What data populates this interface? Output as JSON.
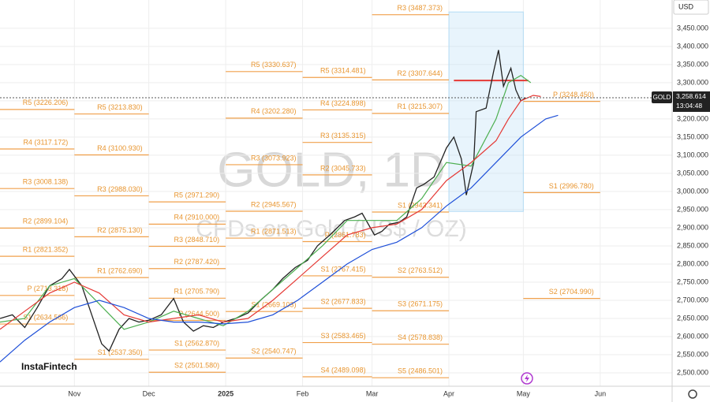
{
  "chart_data": {
    "type": "line",
    "title": "GOLD, 1D",
    "subtitle": "CFDs on Gold (US$ / OZ)",
    "symbol": "GOLD",
    "currency": "USD",
    "brand": "InstaFintech",
    "countdown": "13:04:48",
    "last_price": {
      "value": 3258.614,
      "label": "3,258.614"
    },
    "xlim": [
      -30,
      241
    ],
    "xticks": [
      {
        "value": 0,
        "label": "Nov"
      },
      {
        "value": 30,
        "label": "Dec"
      },
      {
        "value": 61,
        "label": "2025"
      },
      {
        "value": 92,
        "label": "Feb"
      },
      {
        "value": 120,
        "label": "Mar"
      },
      {
        "value": 151,
        "label": "Apr"
      },
      {
        "value": 181,
        "label": "May"
      },
      {
        "value": 212,
        "label": "Jun"
      }
    ],
    "ylim": [
      2463,
      3528
    ],
    "yticks": [
      {
        "value": 2500,
        "label": "2,500.000"
      },
      {
        "value": 2550,
        "label": "2,550.000"
      },
      {
        "value": 2600,
        "label": "2,600.000"
      },
      {
        "value": 2650,
        "label": "2,650.000"
      },
      {
        "value": 2700,
        "label": "2,700.000"
      },
      {
        "value": 2750,
        "label": "2,750.000"
      },
      {
        "value": 2800,
        "label": "2,800.000"
      },
      {
        "value": 2850,
        "label": "2,850.000"
      },
      {
        "value": 2900,
        "label": "2,900.000"
      },
      {
        "value": 2950,
        "label": "2,950.000"
      },
      {
        "value": 3000,
        "label": "3,000.000"
      },
      {
        "value": 3050,
        "label": "3,050.000"
      },
      {
        "value": 3100,
        "label": "3,100.000"
      },
      {
        "value": 3150,
        "label": "3,150.000"
      },
      {
        "value": 3200,
        "label": "3,200.000"
      },
      {
        "value": 3250,
        "label": "3,250.000"
      },
      {
        "value": 3300,
        "label": "3,300.000"
      },
      {
        "value": 3350,
        "label": "3,350.000"
      },
      {
        "value": 3400,
        "label": "3,400.000"
      },
      {
        "value": 3450,
        "label": "3,450.000"
      }
    ],
    "grid": true,
    "series": [
      {
        "color": "#222222",
        "x": [
          -30,
          -25,
          -20,
          -15,
          -10,
          -5,
          -2,
          3,
          7,
          11,
          14,
          18,
          22,
          26,
          30,
          35,
          40,
          44,
          48,
          52,
          56,
          60,
          65,
          70,
          75,
          80,
          84,
          89,
          94,
          98,
          103,
          106,
          109,
          113,
          116,
          121,
          124,
          127,
          131,
          134,
          138,
          141,
          145,
          150,
          153,
          156,
          158,
          161,
          162,
          166,
          169,
          171,
          173,
          176,
          178,
          180,
          182
        ],
        "values": [
          2650,
          2660,
          2625,
          2680,
          2740,
          2760,
          2785,
          2740,
          2660,
          2580,
          2560,
          2620,
          2650,
          2640,
          2645,
          2660,
          2705,
          2640,
          2615,
          2630,
          2625,
          2640,
          2650,
          2665,
          2700,
          2730,
          2760,
          2790,
          2810,
          2850,
          2880,
          2900,
          2920,
          2930,
          2940,
          2880,
          2890,
          2910,
          2915,
          2930,
          3010,
          3020,
          3040,
          3120,
          3150,
          3090,
          2990,
          3080,
          3220,
          3230,
          3330,
          3390,
          3290,
          3340,
          3280,
          3250,
          3258
        ]
      },
      {
        "color": "#4caf50",
        "x": [
          -30,
          -20,
          -10,
          0,
          10,
          20,
          30,
          40,
          50,
          60,
          70,
          80,
          90,
          100,
          110,
          120,
          130,
          140,
          150,
          160,
          170,
          175,
          180,
          184
        ],
        "values": [
          2640,
          2650,
          2740,
          2760,
          2690,
          2620,
          2640,
          2670,
          2650,
          2630,
          2670,
          2730,
          2790,
          2850,
          2920,
          2920,
          2920,
          2980,
          3080,
          3070,
          3200,
          3300,
          3320,
          3300
        ]
      },
      {
        "color": "#e53935",
        "x": [
          -30,
          -20,
          -10,
          0,
          10,
          20,
          30,
          40,
          50,
          60,
          70,
          80,
          90,
          100,
          110,
          120,
          130,
          140,
          150,
          160,
          170,
          175,
          180,
          185,
          188
        ],
        "values": [
          2620,
          2670,
          2720,
          2750,
          2720,
          2660,
          2640,
          2650,
          2660,
          2640,
          2650,
          2700,
          2760,
          2820,
          2880,
          2900,
          2910,
          2950,
          3030,
          3080,
          3140,
          3200,
          3250,
          3265,
          3262
        ]
      },
      {
        "color": "#1e4fd8",
        "x": [
          -30,
          -20,
          -10,
          0,
          10,
          20,
          30,
          40,
          50,
          60,
          70,
          80,
          90,
          100,
          110,
          120,
          130,
          140,
          150,
          160,
          170,
          180,
          190,
          195
        ],
        "values": [
          2530,
          2590,
          2640,
          2680,
          2700,
          2680,
          2650,
          2640,
          2640,
          2635,
          2640,
          2660,
          2700,
          2750,
          2800,
          2840,
          2860,
          2900,
          2960,
          3010,
          3080,
          3150,
          3200,
          3210
        ]
      }
    ],
    "level_color": "#f0a04b",
    "levels": [
      {
        "label": "R5 (3226.206)",
        "value": 3226.206,
        "x": [
          -30,
          0
        ]
      },
      {
        "label": "R4 (3117.172)",
        "value": 3117.172,
        "x": [
          -30,
          0
        ]
      },
      {
        "label": "R3 (3008.138)",
        "value": 3008.138,
        "x": [
          -30,
          0
        ]
      },
      {
        "label": "R2 (2899.104)",
        "value": 2899.104,
        "x": [
          -30,
          0
        ]
      },
      {
        "label": "R1 (2821.352)",
        "value": 2821.352,
        "x": [
          -30,
          0
        ]
      },
      {
        "label": "P (2713.318)",
        "value": 2713.318,
        "x": [
          -30,
          0
        ]
      },
      {
        "label": "S1 (2634.566)",
        "value": 2634.566,
        "x": [
          -30,
          0
        ]
      },
      {
        "label": "R5 (3213.830)",
        "value": 3213.83,
        "x": [
          0,
          30
        ]
      },
      {
        "label": "R4 (3100.930)",
        "value": 3100.93,
        "x": [
          0,
          30
        ]
      },
      {
        "label": "R3 (2988.030)",
        "value": 2988.03,
        "x": [
          0,
          30
        ]
      },
      {
        "label": "R2 (2875.130)",
        "value": 2875.13,
        "x": [
          0,
          30
        ]
      },
      {
        "label": "R1 (2762.690)",
        "value": 2762.69,
        "x": [
          0,
          30
        ]
      },
      {
        "label": "S1 (2537.350)",
        "value": 2537.35,
        "x": [
          0,
          30
        ]
      },
      {
        "label": "R5 (2971.290)",
        "value": 2971.29,
        "x": [
          30,
          61
        ]
      },
      {
        "label": "R4 (2910.000)",
        "value": 2910.0,
        "x": [
          30,
          61
        ]
      },
      {
        "label": "R3 (2848.710)",
        "value": 2848.71,
        "x": [
          30,
          61
        ]
      },
      {
        "label": "R2 (2787.420)",
        "value": 2787.42,
        "x": [
          30,
          61
        ]
      },
      {
        "label": "R1 (2705.790)",
        "value": 2705.79,
        "x": [
          30,
          61
        ]
      },
      {
        "label": "P (2644.500)",
        "value": 2644.5,
        "x": [
          30,
          61
        ]
      },
      {
        "label": "S1 (2562.870)",
        "value": 2562.87,
        "x": [
          30,
          61
        ]
      },
      {
        "label": "S2 (2501.580)",
        "value": 2501.58,
        "x": [
          30,
          61
        ]
      },
      {
        "label": "R5 (3330.637)",
        "value": 3330.637,
        "x": [
          61,
          92
        ]
      },
      {
        "label": "R4 (3202.280)",
        "value": 3202.28,
        "x": [
          61,
          92
        ]
      },
      {
        "label": "R3 (3073.923)",
        "value": 3073.923,
        "x": [
          61,
          92
        ]
      },
      {
        "label": "R2 (2945.567)",
        "value": 2945.567,
        "x": [
          61,
          92
        ]
      },
      {
        "label": "R1 (2871.513)",
        "value": 2871.513,
        "x": [
          61,
          92
        ]
      },
      {
        "label": "S1 (2669.103)",
        "value": 2669.103,
        "x": [
          61,
          92
        ]
      },
      {
        "label": "S2 (2540.747)",
        "value": 2540.747,
        "x": [
          61,
          92
        ]
      },
      {
        "label": "R5 (3314.481)",
        "value": 3314.481,
        "x": [
          92,
          120
        ]
      },
      {
        "label": "R4 (3224.898)",
        "value": 3224.898,
        "x": [
          92,
          120
        ]
      },
      {
        "label": "R3 (3135.315)",
        "value": 3135.315,
        "x": [
          92,
          120
        ]
      },
      {
        "label": "R2 (3045.733)",
        "value": 3045.733,
        "x": [
          92,
          120
        ]
      },
      {
        "label": "P (2861.783)",
        "value": 2861.783,
        "x": [
          92,
          120
        ]
      },
      {
        "label": "S1 (2767.415)",
        "value": 2767.415,
        "x": [
          92,
          120
        ]
      },
      {
        "label": "S2 (2677.833)",
        "value": 2677.833,
        "x": [
          92,
          120
        ]
      },
      {
        "label": "S3 (2583.465)",
        "value": 2583.465,
        "x": [
          92,
          120
        ]
      },
      {
        "label": "S4 (2489.098)",
        "value": 2489.098,
        "x": [
          92,
          120
        ]
      },
      {
        "label": "R3 (3487.373)",
        "value": 3487.373,
        "x": [
          120,
          151
        ]
      },
      {
        "label": "R2 (3307.644)",
        "value": 3307.644,
        "x": [
          120,
          151
        ]
      },
      {
        "label": "R1 (3215.307)",
        "value": 3215.307,
        "x": [
          120,
          151
        ]
      },
      {
        "label": "S1 (2943.341)",
        "value": 2943.341,
        "x": [
          120,
          151
        ]
      },
      {
        "label": "S2 (2763.512)",
        "value": 2763.512,
        "x": [
          120,
          151
        ]
      },
      {
        "label": "S3 (2671.175)",
        "value": 2671.175,
        "x": [
          120,
          151
        ]
      },
      {
        "label": "S4 (2578.838)",
        "value": 2578.838,
        "x": [
          120,
          151
        ]
      },
      {
        "label": "S5 (2486.501)",
        "value": 2486.501,
        "x": [
          120,
          151
        ]
      },
      {
        "label": "P (3248.450)",
        "value": 3248.45,
        "x": [
          181,
          212
        ]
      },
      {
        "label": "S1 (2996.780)",
        "value": 2996.78,
        "x": [
          181,
          212
        ]
      },
      {
        "label": "S2 (2704.990)",
        "value": 2704.99,
        "x": [
          181,
          212
        ]
      }
    ],
    "profile": {
      "x": [
        151,
        181
      ],
      "y": [
        2945,
        3495
      ],
      "color": "#b3dcf5"
    },
    "poc": {
      "value": 3306,
      "x": [
        153,
        183
      ],
      "color": "#e53935"
    }
  }
}
